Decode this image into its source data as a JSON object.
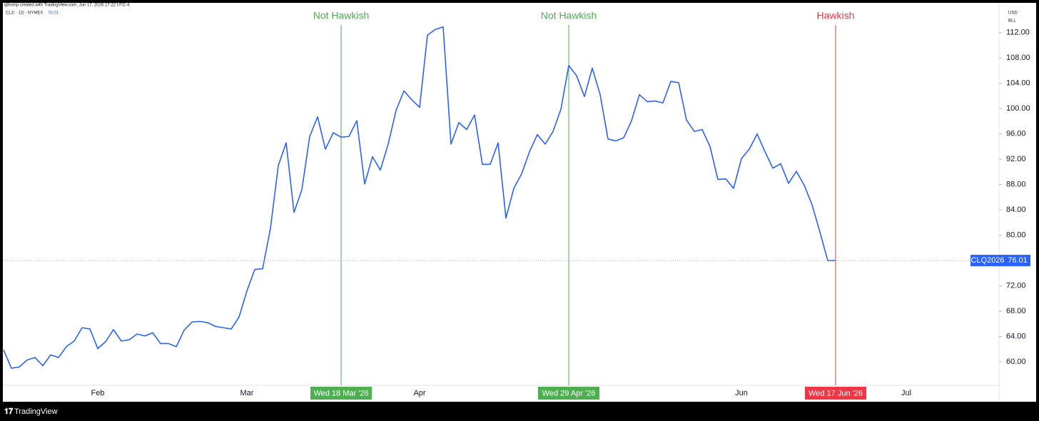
{
  "header": "qthomp created with TradingView.com, Jun 17, 2026 17:22 UTC-4",
  "footer": "TradingView",
  "chart_data": {
    "type": "line",
    "symbol": "CL1! · 1D · NYMEX",
    "currency": "USD",
    "unit": "BLL",
    "contract": "CLQ2026",
    "color": "#2962ff",
    "categories": [
      null,
      null,
      null,
      null,
      null,
      null,
      null,
      null,
      null,
      null,
      null,
      null,
      "Feb",
      null,
      null,
      null,
      null,
      null,
      null,
      null,
      null,
      null,
      null,
      null,
      null,
      null,
      null,
      null,
      null,
      null,
      null,
      "Mar",
      null,
      null,
      null,
      null,
      null,
      null,
      null,
      null,
      null,
      null,
      null,
      "Wed 18 Mar '26",
      null,
      null,
      null,
      null,
      null,
      null,
      null,
      null,
      null,
      "Apr",
      null,
      null,
      null,
      null,
      null,
      null,
      null,
      null,
      null,
      null,
      null,
      null,
      null,
      null,
      null,
      null,
      null,
      null,
      "Wed 29 Apr '26",
      null,
      null,
      null,
      null,
      null,
      null,
      null,
      null,
      null,
      null,
      null,
      null,
      null,
      null,
      null,
      null,
      null,
      null,
      null,
      null,
      null,
      "Jun",
      null,
      null,
      null,
      null,
      null,
      null,
      null,
      null,
      null,
      null,
      null,
      "Wed 17 Jun '26",
      null,
      null,
      null,
      null,
      null,
      null,
      null,
      null,
      "Jul",
      null,
      null,
      null,
      null,
      null,
      null,
      null,
      null,
      null,
      null,
      null
    ],
    "values": [
      61.9,
      59.0,
      59.2,
      60.3,
      60.7,
      59.4,
      61.1,
      60.7,
      62.4,
      63.3,
      65.4,
      65.2,
      62.1,
      63.2,
      65.1,
      63.3,
      63.5,
      64.4,
      64.1,
      64.6,
      62.9,
      62.9,
      62.4,
      65.0,
      66.3,
      66.4,
      66.2,
      65.6,
      65.4,
      65.2,
      67.1,
      71.2,
      74.6,
      74.7,
      81.1,
      91.0,
      94.6,
      83.6,
      87.2,
      95.6,
      98.7,
      93.6,
      96.2,
      95.5,
      95.6,
      98.1,
      88.1,
      92.4,
      90.3,
      94.4,
      99.7,
      102.8,
      101.4,
      100.2,
      111.6,
      112.5,
      112.9,
      94.4,
      97.8,
      96.7,
      99.0,
      91.2,
      91.2,
      94.6,
      82.7,
      87.4,
      89.7,
      93.2,
      95.9,
      94.4,
      96.4,
      99.9,
      106.8,
      105.2,
      101.9,
      106.4,
      102.2,
      95.2,
      94.9,
      95.4,
      98.1,
      102.2,
      101.1,
      101.2,
      100.9,
      104.3,
      104.1,
      98.2,
      96.4,
      96.7,
      94.0,
      88.8,
      88.9,
      87.4,
      92.1,
      93.6,
      96.0,
      93.2,
      90.6,
      91.3,
      88.2,
      90.1,
      87.9,
      84.8,
      80.5,
      76.0,
      76.01,
      null,
      null,
      null,
      null,
      null,
      null,
      null,
      null,
      null,
      null,
      null,
      null,
      null,
      null,
      null,
      null,
      null,
      null,
      null,
      null
    ],
    "ylim": [
      56.3,
      115.8
    ],
    "yticks": [
      {
        "value": 60,
        "label": "60.00"
      },
      {
        "value": 64,
        "label": "64.00"
      },
      {
        "value": 68,
        "label": "68.00"
      },
      {
        "value": 72,
        "label": "72.00"
      },
      {
        "value": 76,
        "label": "76.00"
      },
      {
        "value": 80,
        "label": "80.00"
      },
      {
        "value": 84,
        "label": "84.00"
      },
      {
        "value": 88,
        "label": "88.00"
      },
      {
        "value": 92,
        "label": "92.00"
      },
      {
        "value": 96,
        "label": "96.00"
      },
      {
        "value": 100,
        "label": "100.00"
      },
      {
        "value": 104,
        "label": "104.00"
      },
      {
        "value": 108,
        "label": "108.00"
      },
      {
        "value": 112,
        "label": "112.00"
      }
    ],
    "markers": [
      {
        "date": "Wed 18 Mar '26",
        "label": "Not Hawkish",
        "color": "#4caf50"
      },
      {
        "date": "Wed 29 Apr '26",
        "label": "Not Hawkish",
        "color": "#4caf50"
      },
      {
        "date": "Wed 17 Jun '26",
        "label": "Hawkish",
        "color": "#f23645"
      }
    ]
  }
}
